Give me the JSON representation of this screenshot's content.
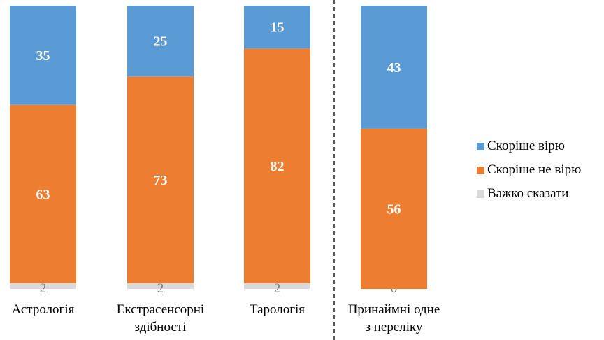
{
  "chart_data": {
    "type": "bar",
    "stacked": true,
    "normalized_percent": true,
    "categories": [
      [
        "Астрологія"
      ],
      [
        "Екстрасенсорні",
        "здібності"
      ],
      [
        "Тарологія"
      ],
      [
        "Принаймні одне",
        "з переліку"
      ]
    ],
    "series": [
      {
        "name": "Важко сказати",
        "values": [
          2,
          2,
          2,
          0
        ],
        "color": "#d9d9d9",
        "label_color": "#7f7f7f"
      },
      {
        "name": "Скоріше не вірю",
        "values": [
          63,
          73,
          82,
          56
        ],
        "color": "#ed7d31",
        "label_color": "#ffffff"
      },
      {
        "name": "Скоріше вірю",
        "values": [
          35,
          25,
          15,
          43
        ],
        "color": "#5b9bd5",
        "label_color": "#ffffff"
      }
    ],
    "legend": {
      "position": "right",
      "entries": [
        "Скоріше вірю",
        "Скоріше не вірю",
        "Важко сказати"
      ]
    },
    "separator_before_category": 3,
    "grid": false,
    "title": "",
    "xlabel": "",
    "ylabel": ""
  }
}
